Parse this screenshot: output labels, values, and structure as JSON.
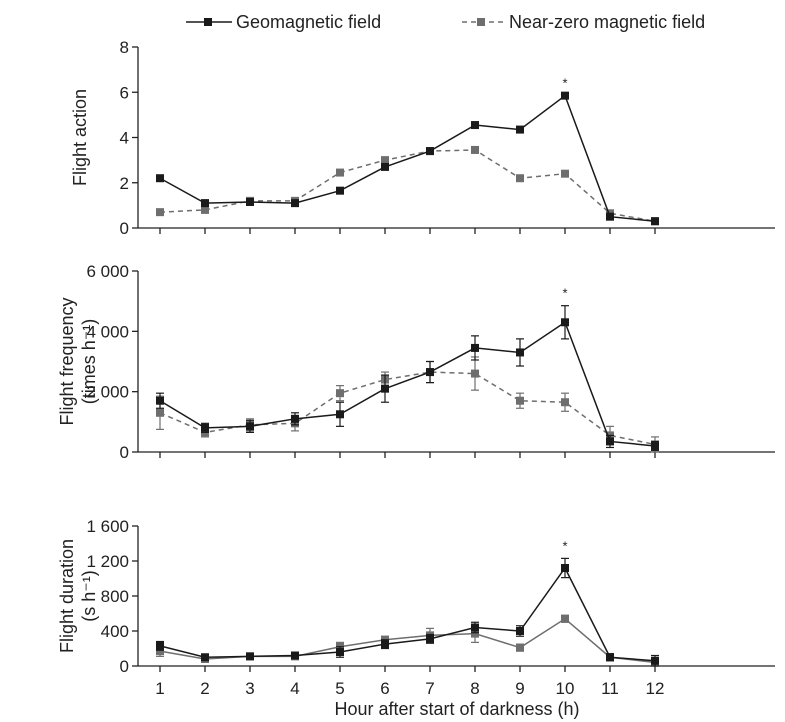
{
  "legend": {
    "series_a": "Geomagnetic field",
    "series_b": "Near-zero magnetic field"
  },
  "colors": {
    "series_a": "#1a1a1a",
    "series_b": "#6e6e6e"
  },
  "chart_data": [
    {
      "type": "line",
      "title": "",
      "ylabel_lines": [
        "Flight action"
      ],
      "xlabel": "",
      "x": [
        1,
        2,
        3,
        4,
        5,
        6,
        7,
        8,
        9,
        10,
        11,
        12
      ],
      "ylim": [
        0,
        8
      ],
      "yticks": [
        0,
        2,
        4,
        6,
        8
      ],
      "ytick_labels": [
        "0",
        "2",
        "4",
        "6",
        "8"
      ],
      "series": [
        {
          "name": "Geomagnetic field",
          "values": [
            2.2,
            1.1,
            1.15,
            1.1,
            1.65,
            2.7,
            3.4,
            4.55,
            4.35,
            5.85,
            0.5,
            0.3
          ],
          "errors": [
            0,
            0,
            0,
            0,
            0,
            0,
            0,
            0,
            0,
            0,
            0,
            0
          ]
        },
        {
          "name": "Near-zero magnetic field",
          "values": [
            0.7,
            0.8,
            1.2,
            1.2,
            2.45,
            3.0,
            3.4,
            3.45,
            2.2,
            2.4,
            0.65,
            0.3
          ],
          "errors": [
            0,
            0,
            0,
            0,
            0,
            0,
            0,
            0,
            0,
            0,
            0,
            0
          ]
        }
      ],
      "annotations": [
        {
          "x": 10,
          "text": "*"
        }
      ]
    },
    {
      "type": "line",
      "title": "",
      "ylabel_lines": [
        "Flight frequency",
        "(times h⁻¹)"
      ],
      "xlabel": "",
      "x": [
        1,
        2,
        3,
        4,
        5,
        6,
        7,
        8,
        9,
        10,
        11,
        12
      ],
      "ylim": [
        0,
        6000
      ],
      "yticks": [
        0,
        2000,
        4000,
        6000
      ],
      "ytick_labels": [
        "0",
        "2 000",
        "4 000",
        "6 000"
      ],
      "series": [
        {
          "name": "Geomagnetic field",
          "values": [
            1700,
            800,
            850,
            1100,
            1250,
            2100,
            2650,
            3450,
            3300,
            4300,
            350,
            200
          ],
          "errors": [
            250,
            150,
            200,
            200,
            400,
            450,
            350,
            400,
            450,
            550,
            200,
            150
          ]
        },
        {
          "name": "Near-zero magnetic field",
          "values": [
            1300,
            650,
            900,
            950,
            1950,
            2400,
            2650,
            2600,
            1700,
            1650,
            550,
            250
          ],
          "errors": [
            550,
            150,
            200,
            250,
            250,
            250,
            350,
            550,
            250,
            300,
            300,
            250
          ]
        }
      ],
      "annotations": [
        {
          "x": 10,
          "text": "*"
        }
      ]
    },
    {
      "type": "line",
      "title": "",
      "ylabel_lines": [
        "Flight duration",
        "(s h⁻¹)"
      ],
      "xlabel": "Hour after start of darkness (h)",
      "x": [
        1,
        2,
        3,
        4,
        5,
        6,
        7,
        8,
        9,
        10,
        11,
        12
      ],
      "ylim": [
        0,
        1600
      ],
      "yticks": [
        0,
        400,
        800,
        1200,
        1600
      ],
      "ytick_labels": [
        "0",
        "400",
        "800",
        "1 200",
        "1 600"
      ],
      "xtick_labels": [
        "1",
        "2",
        "3",
        "4",
        "5",
        "6",
        "7",
        "8",
        "9",
        "10",
        "11",
        "12"
      ],
      "series": [
        {
          "name": "Geomagnetic field",
          "values": [
            230,
            100,
            110,
            120,
            160,
            250,
            310,
            440,
            400,
            1120,
            100,
            60
          ],
          "errors": [
            50,
            30,
            30,
            30,
            60,
            50,
            50,
            60,
            60,
            110,
            40,
            60
          ]
        },
        {
          "name": "Near-zero magnetic field",
          "values": [
            170,
            80,
            110,
            110,
            220,
            300,
            350,
            370,
            210,
            540,
            100,
            40
          ],
          "errors": [
            60,
            25,
            30,
            30,
            50,
            40,
            80,
            100,
            40,
            40,
            40,
            40
          ]
        }
      ],
      "annotations": [
        {
          "x": 10,
          "text": "*"
        }
      ]
    }
  ]
}
